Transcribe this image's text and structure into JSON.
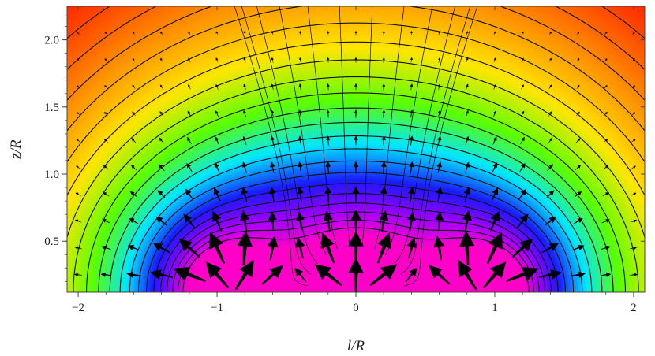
{
  "chart_data": {
    "type": "heatmap",
    "title": "",
    "xlabel": "l/R",
    "ylabel": "z/R",
    "xlim": [
      -2.08,
      2.08
    ],
    "ylim": [
      0.12,
      2.25
    ],
    "x_ticks": [
      -2,
      -1,
      0,
      1,
      2
    ],
    "x_tick_labels": [
      "−2",
      "−1",
      "0",
      "1",
      "2"
    ],
    "y_ticks": [
      0.5,
      1.0,
      1.5,
      2.0
    ],
    "y_tick_labels": [
      "0.5",
      "1.0",
      "1.5",
      "2.0"
    ],
    "grid": false,
    "legend": "none",
    "colormap": "rainbow",
    "colormap_colors": [
      "#ff2a00",
      "#ff8c00",
      "#ffe600",
      "#5cff00",
      "#00e8ff",
      "#1a1aff",
      "#a000ff",
      "#ff00c8"
    ],
    "field": {
      "description_terms": "potential contours with field vectors",
      "peaks": [
        {
          "l": -0.9,
          "z": 0.12
        },
        {
          "l": 0.0,
          "z": 0.12
        },
        {
          "l": 0.9,
          "z": 0.12
        }
      ],
      "contour_levels": 22
    },
    "arrow_grid": {
      "l_step": 0.2,
      "z_step": 0.2,
      "l_range": [
        -2.0,
        2.0
      ],
      "z_range": [
        0.25,
        2.15
      ]
    },
    "field_lines": {
      "count": 12
    }
  }
}
